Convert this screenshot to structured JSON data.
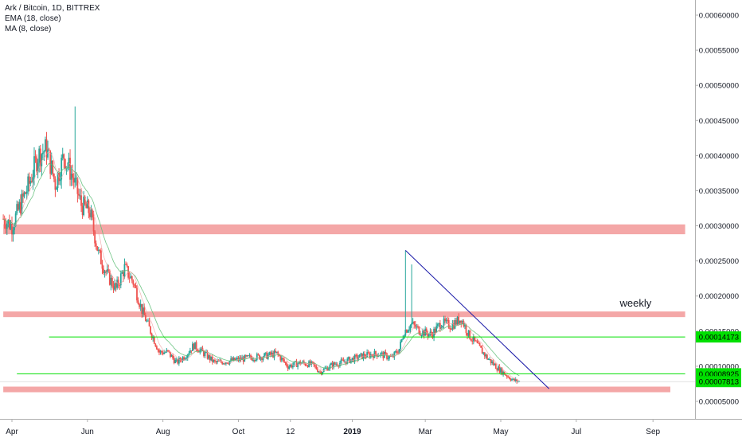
{
  "header": {
    "symbol": "Ark / Bitcoin, 1D, BITTREX",
    "indicator_1": "EMA (18, close)",
    "indicator_2": "MA (8, close)"
  },
  "colors": {
    "up": "#26a69a",
    "down": "#ef5350",
    "zone": "#f4a7a7",
    "green_line": "#00e000",
    "trendline": "#1a1aa8",
    "ema": "#5fbf78",
    "ma": "#f0a0a0",
    "label_green": "#00e000",
    "axis_text": "#131722"
  },
  "chart_data": {
    "type": "candlestick",
    "title": "Ark / Bitcoin, 1D, BITTREX",
    "series": [
      {
        "name": "EMA (18, close)"
      },
      {
        "name": "MA (8, close)"
      }
    ],
    "x_ticks": [
      "Apr",
      "Jun",
      "Aug",
      "Oct",
      "12",
      "2019",
      "Mar",
      "May",
      "Jul",
      "Sep"
    ],
    "x_tick_dates": [
      "2018-04-01",
      "2018-06-01",
      "2018-08-01",
      "2018-10-01",
      "2018-11-12",
      "2019-01-01",
      "2019-03-01",
      "2019-05-01",
      "2019-07-01",
      "2019-09-01"
    ],
    "y_ticks": [
      "0.00060000",
      "0.00055000",
      "0.00050000",
      "0.00045000",
      "0.00040000",
      "0.00035000",
      "0.00030000",
      "0.00025000",
      "0.00020000",
      "0.00015000",
      "0.00010000",
      "0.00005000"
    ],
    "y_tick_values": [
      0.0006,
      0.00055,
      0.0005,
      0.00045,
      0.0004,
      0.00035,
      0.0003,
      0.00025,
      0.0002,
      0.00015,
      0.0001,
      5e-05
    ],
    "price_keypoints": [
      [
        "2018-03-25",
        0.00031
      ],
      [
        "2018-04-01",
        0.0003
      ],
      [
        "2018-04-08",
        0.00033
      ],
      [
        "2018-04-15",
        0.00036
      ],
      [
        "2018-04-22",
        0.0004
      ],
      [
        "2018-04-29",
        0.00041
      ],
      [
        "2018-05-06",
        0.00036
      ],
      [
        "2018-05-13",
        0.0004
      ],
      [
        "2018-05-20",
        0.00037
      ],
      [
        "2018-05-27",
        0.00033
      ],
      [
        "2018-06-03",
        0.00032
      ],
      [
        "2018-06-10",
        0.00026
      ],
      [
        "2018-06-17",
        0.00023
      ],
      [
        "2018-06-24",
        0.00021
      ],
      [
        "2018-07-01",
        0.00024
      ],
      [
        "2018-07-08",
        0.00022
      ],
      [
        "2018-07-15",
        0.00018
      ],
      [
        "2018-07-22",
        0.00015
      ],
      [
        "2018-07-29",
        0.00012
      ],
      [
        "2018-08-05",
        0.00012
      ],
      [
        "2018-08-12",
        0.000105
      ],
      [
        "2018-08-19",
        0.000115
      ],
      [
        "2018-08-26",
        0.00013
      ],
      [
        "2018-09-02",
        0.00012
      ],
      [
        "2018-09-12",
        0.000105
      ],
      [
        "2018-09-26",
        0.000108
      ],
      [
        "2018-10-10",
        0.000112
      ],
      [
        "2018-10-24",
        0.000115
      ],
      [
        "2018-11-01",
        0.000118
      ],
      [
        "2018-11-10",
        0.0001
      ],
      [
        "2018-11-20",
        0.000105
      ],
      [
        "2018-11-30",
        0.000102
      ],
      [
        "2018-12-06",
        9.2e-05
      ],
      [
        "2018-12-16",
        0.000102
      ],
      [
        "2018-12-28",
        0.000108
      ],
      [
        "2019-01-10",
        0.000115
      ],
      [
        "2019-01-22",
        0.000118
      ],
      [
        "2019-02-02",
        0.000112
      ],
      [
        "2019-02-08",
        0.000125
      ],
      [
        "2019-02-12",
        0.00015
      ],
      [
        "2019-02-18",
        0.00016
      ],
      [
        "2019-02-25",
        0.00015
      ],
      [
        "2019-03-06",
        0.000145
      ],
      [
        "2019-03-14",
        0.000162
      ],
      [
        "2019-03-22",
        0.000158
      ],
      [
        "2019-03-30",
        0.000168
      ],
      [
        "2019-04-05",
        0.000145
      ],
      [
        "2019-04-12",
        0.00013
      ],
      [
        "2019-04-20",
        0.000112
      ],
      [
        "2019-04-28",
        9.8e-05
      ],
      [
        "2019-05-05",
        8.8e-05
      ],
      [
        "2019-05-11",
        8e-05
      ],
      [
        "2019-05-16",
        7.8e-05
      ]
    ],
    "spikes": [
      {
        "date": "2018-05-22",
        "high": 0.00047
      },
      {
        "date": "2019-02-13",
        "high": 0.000265
      },
      {
        "date": "2019-02-18",
        "high": 0.000245
      }
    ],
    "zones": [
      {
        "from": 0.000288,
        "to": 0.000302,
        "x_start": "2018-03-25",
        "x_end": "2019-09-27"
      },
      {
        "from": 0.00017,
        "to": 0.000178,
        "x_start": "2018-03-25",
        "x_end": "2019-09-27"
      },
      {
        "from": 6.3e-05,
        "to": 7.1e-05,
        "x_start": "2018-03-25",
        "x_end": "2019-09-15"
      }
    ],
    "horizontal_lines": [
      {
        "value": 0.00014173,
        "x_start": "2018-05-01",
        "x_end": "2019-09-27",
        "label": "0.00014173"
      },
      {
        "value": 8.925e-05,
        "x_start": "2018-04-05",
        "x_end": "2019-09-27",
        "label": "0.00008925"
      }
    ],
    "current_price": {
      "value": 7.813e-05,
      "label": "0.00007813"
    },
    "trendline": {
      "start": [
        "2019-02-13",
        0.000265
      ],
      "end": [
        "2019-06-09",
        6.8e-05
      ]
    },
    "annotation": {
      "text": "weekly",
      "value": 0.000185,
      "date": "2019-08-18"
    },
    "ylim": [
      2e-05,
      0.00063
    ]
  }
}
